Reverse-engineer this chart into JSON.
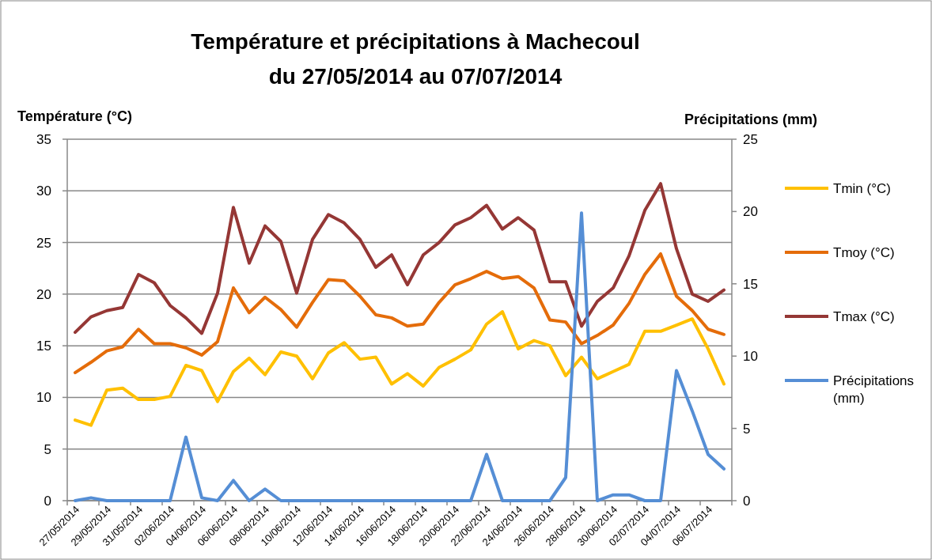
{
  "chart_data": {
    "type": "line",
    "title": "Température et précipitations à Machecoul\ndu 27/05/2014 au 07/07/2014",
    "ylabel": "Température (°C)",
    "y2label": "Précipitations (mm)",
    "categories": [
      "27/05/2014",
      null,
      "29/05/2014",
      null,
      "31/05/2014",
      null,
      "02/06/2014",
      null,
      "04/06/2014",
      null,
      "06/06/2014",
      null,
      "08/06/2014",
      null,
      "10/06/2014",
      null,
      "12/06/2014",
      null,
      "14/06/2014",
      null,
      "16/06/2014",
      null,
      "18/06/2014",
      null,
      "20/06/2014",
      null,
      "22/06/2014",
      null,
      "24/06/2014",
      null,
      "26/06/2014",
      null,
      "28/06/2014",
      null,
      "30/06/2014",
      null,
      "02/07/2014",
      null,
      "04/07/2014",
      null,
      "06/07/2014",
      null
    ],
    "series": [
      {
        "name": "Tmin (°C)",
        "color": "#ffc000",
        "values": [
          7.8,
          7.3,
          10.7,
          10.9,
          9.8,
          9.8,
          10.1,
          13.1,
          12.6,
          9.6,
          12.5,
          13.8,
          12.2,
          14.4,
          14.0,
          11.8,
          14.3,
          15.3,
          13.7,
          13.9,
          11.3,
          12.3,
          11.1,
          12.9,
          13.7,
          14.6,
          17.1,
          18.3,
          14.7,
          15.5,
          15.0,
          12.1,
          13.9,
          11.8,
          12.5,
          13.2,
          16.4,
          16.4,
          17.0,
          17.6,
          14.7,
          11.3
        ]
      },
      {
        "name": "Tmoy (°C)",
        "color": "#e46c0a",
        "values": [
          12.4,
          13.4,
          14.5,
          14.9,
          16.6,
          15.2,
          15.2,
          14.8,
          14.1,
          15.4,
          20.6,
          18.2,
          19.7,
          18.5,
          16.8,
          19.2,
          21.4,
          21.3,
          19.8,
          18.0,
          17.7,
          16.9,
          17.1,
          19.2,
          20.9,
          21.5,
          22.2,
          21.5,
          21.7,
          20.6,
          17.5,
          17.3,
          15.2,
          16.0,
          17.0,
          19.1,
          21.9,
          23.9,
          19.8,
          18.4,
          16.6,
          16.1
        ]
      },
      {
        "name": "Tmax (°C)",
        "color": "#953735",
        "values": [
          16.3,
          17.8,
          18.4,
          18.7,
          21.9,
          21.1,
          18.9,
          17.7,
          16.2,
          20.1,
          28.4,
          23.0,
          26.6,
          25.1,
          20.1,
          25.3,
          27.7,
          26.9,
          25.3,
          22.6,
          23.8,
          20.9,
          23.8,
          25.0,
          26.7,
          27.4,
          28.6,
          26.3,
          27.4,
          26.2,
          21.2,
          21.2,
          16.9,
          19.3,
          20.6,
          23.7,
          28.1,
          30.7,
          24.4,
          20.0,
          19.3,
          20.4
        ]
      },
      {
        "name": "Précipitations (mm)",
        "color": "#558ed5",
        "axis": "y2",
        "values": [
          0,
          0.2,
          0,
          0,
          0,
          0,
          0,
          4.4,
          0.2,
          0,
          1.4,
          0,
          0.8,
          0,
          0,
          0,
          0,
          0,
          0,
          0,
          0,
          0,
          0,
          0,
          0,
          0,
          3.2,
          0,
          0,
          0,
          0,
          1.6,
          19.9,
          0,
          0.4,
          0.4,
          0,
          0,
          9.0,
          6.2,
          3.2,
          2.2
        ]
      }
    ],
    "ylim": [
      0,
      35
    ],
    "yticks": [
      0,
      5,
      10,
      15,
      20,
      25,
      30,
      35
    ],
    "y2lim": [
      0,
      25
    ],
    "y2ticks": [
      0,
      5,
      10,
      15,
      20,
      25
    ],
    "grid": "y",
    "legend": "right",
    "marker": "none",
    "line_style": "solid"
  }
}
